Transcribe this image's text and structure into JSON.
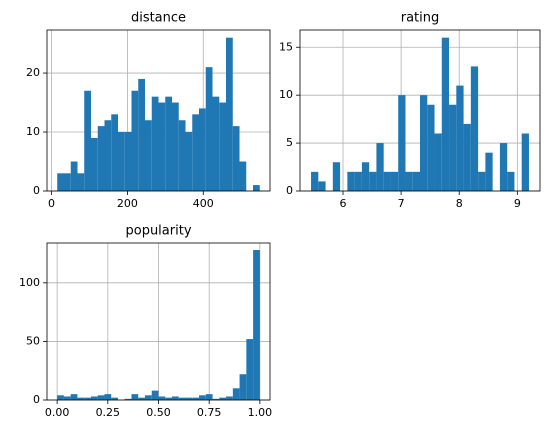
{
  "chart_data": [
    {
      "type": "histogram",
      "title": "distance",
      "color": "#1f77b4",
      "grid": true,
      "bins": [
        15,
        32.8,
        50.6,
        68.4,
        86.2,
        104,
        121.8,
        139.6,
        157.4,
        175.2,
        193,
        210.8,
        228.6,
        246.4,
        264.2,
        282,
        299.8,
        317.6,
        335.4,
        353.2,
        371,
        388.8,
        406.6,
        424.4,
        442.2,
        460,
        477.8,
        495.6,
        513.4,
        531.2,
        549
      ],
      "values": [
        3,
        3,
        5,
        3,
        17,
        9,
        11,
        12,
        13,
        10,
        10,
        17,
        19,
        12,
        16,
        15,
        16,
        15,
        12,
        10,
        13,
        14,
        21,
        16,
        15,
        26,
        11,
        5,
        0,
        1
      ],
      "xlim": [
        -12,
        576
      ],
      "xticks": [
        0,
        200,
        400
      ],
      "ylim": [
        0,
        27.3
      ],
      "yticks": [
        0,
        10,
        20
      ]
    },
    {
      "type": "histogram",
      "title": "rating",
      "color": "#1f77b4",
      "grid": true,
      "bins": [
        5.45,
        5.575,
        5.7,
        5.825,
        5.95,
        6.075,
        6.2,
        6.325,
        6.45,
        6.575,
        6.7,
        6.825,
        6.95,
        7.075,
        7.2,
        7.325,
        7.45,
        7.575,
        7.7,
        7.825,
        7.95,
        8.075,
        8.2,
        8.325,
        8.45,
        8.575,
        8.7,
        8.825,
        8.95,
        9.075,
        9.2
      ],
      "values": [
        2,
        1,
        0,
        3,
        0,
        2,
        2,
        3,
        2,
        5,
        2,
        2,
        10,
        2,
        2,
        10,
        9,
        6,
        16,
        9,
        11,
        7,
        13,
        2,
        4,
        0,
        5,
        2,
        0,
        6
      ],
      "xlim": [
        5.26,
        9.39
      ],
      "xticks": [
        6,
        7,
        8,
        9
      ],
      "ylim": [
        0,
        16.8
      ],
      "yticks": [
        0,
        5,
        10,
        15
      ]
    },
    {
      "type": "histogram",
      "title": "popularity",
      "color": "#1f77b4",
      "grid": true,
      "bins": [
        0,
        0.0333,
        0.0667,
        0.1,
        0.1333,
        0.1667,
        0.2,
        0.2333,
        0.2667,
        0.3,
        0.3333,
        0.3667,
        0.4,
        0.4333,
        0.4667,
        0.5,
        0.5333,
        0.5667,
        0.6,
        0.6333,
        0.6667,
        0.7,
        0.7333,
        0.7667,
        0.8,
        0.8333,
        0.8667,
        0.9,
        0.9333,
        0.9667,
        1
      ],
      "values": [
        4,
        3,
        5,
        2,
        2,
        3,
        4,
        5,
        2,
        0,
        1,
        5,
        2,
        4,
        8,
        3,
        2,
        3,
        2,
        2,
        2,
        4,
        5,
        1,
        2,
        3,
        10,
        22,
        52,
        128
      ],
      "xlim": [
        -0.05,
        1.05
      ],
      "xticks": [
        {
          "value": 0,
          "label": "0.00"
        },
        {
          "value": 0.25,
          "label": "0.25"
        },
        {
          "value": 0.5,
          "label": "0.50"
        },
        {
          "value": 0.75,
          "label": "0.75"
        },
        {
          "value": 1,
          "label": "1.00"
        }
      ],
      "ylim": [
        0,
        134
      ],
      "yticks": [
        0,
        50,
        100
      ]
    }
  ]
}
